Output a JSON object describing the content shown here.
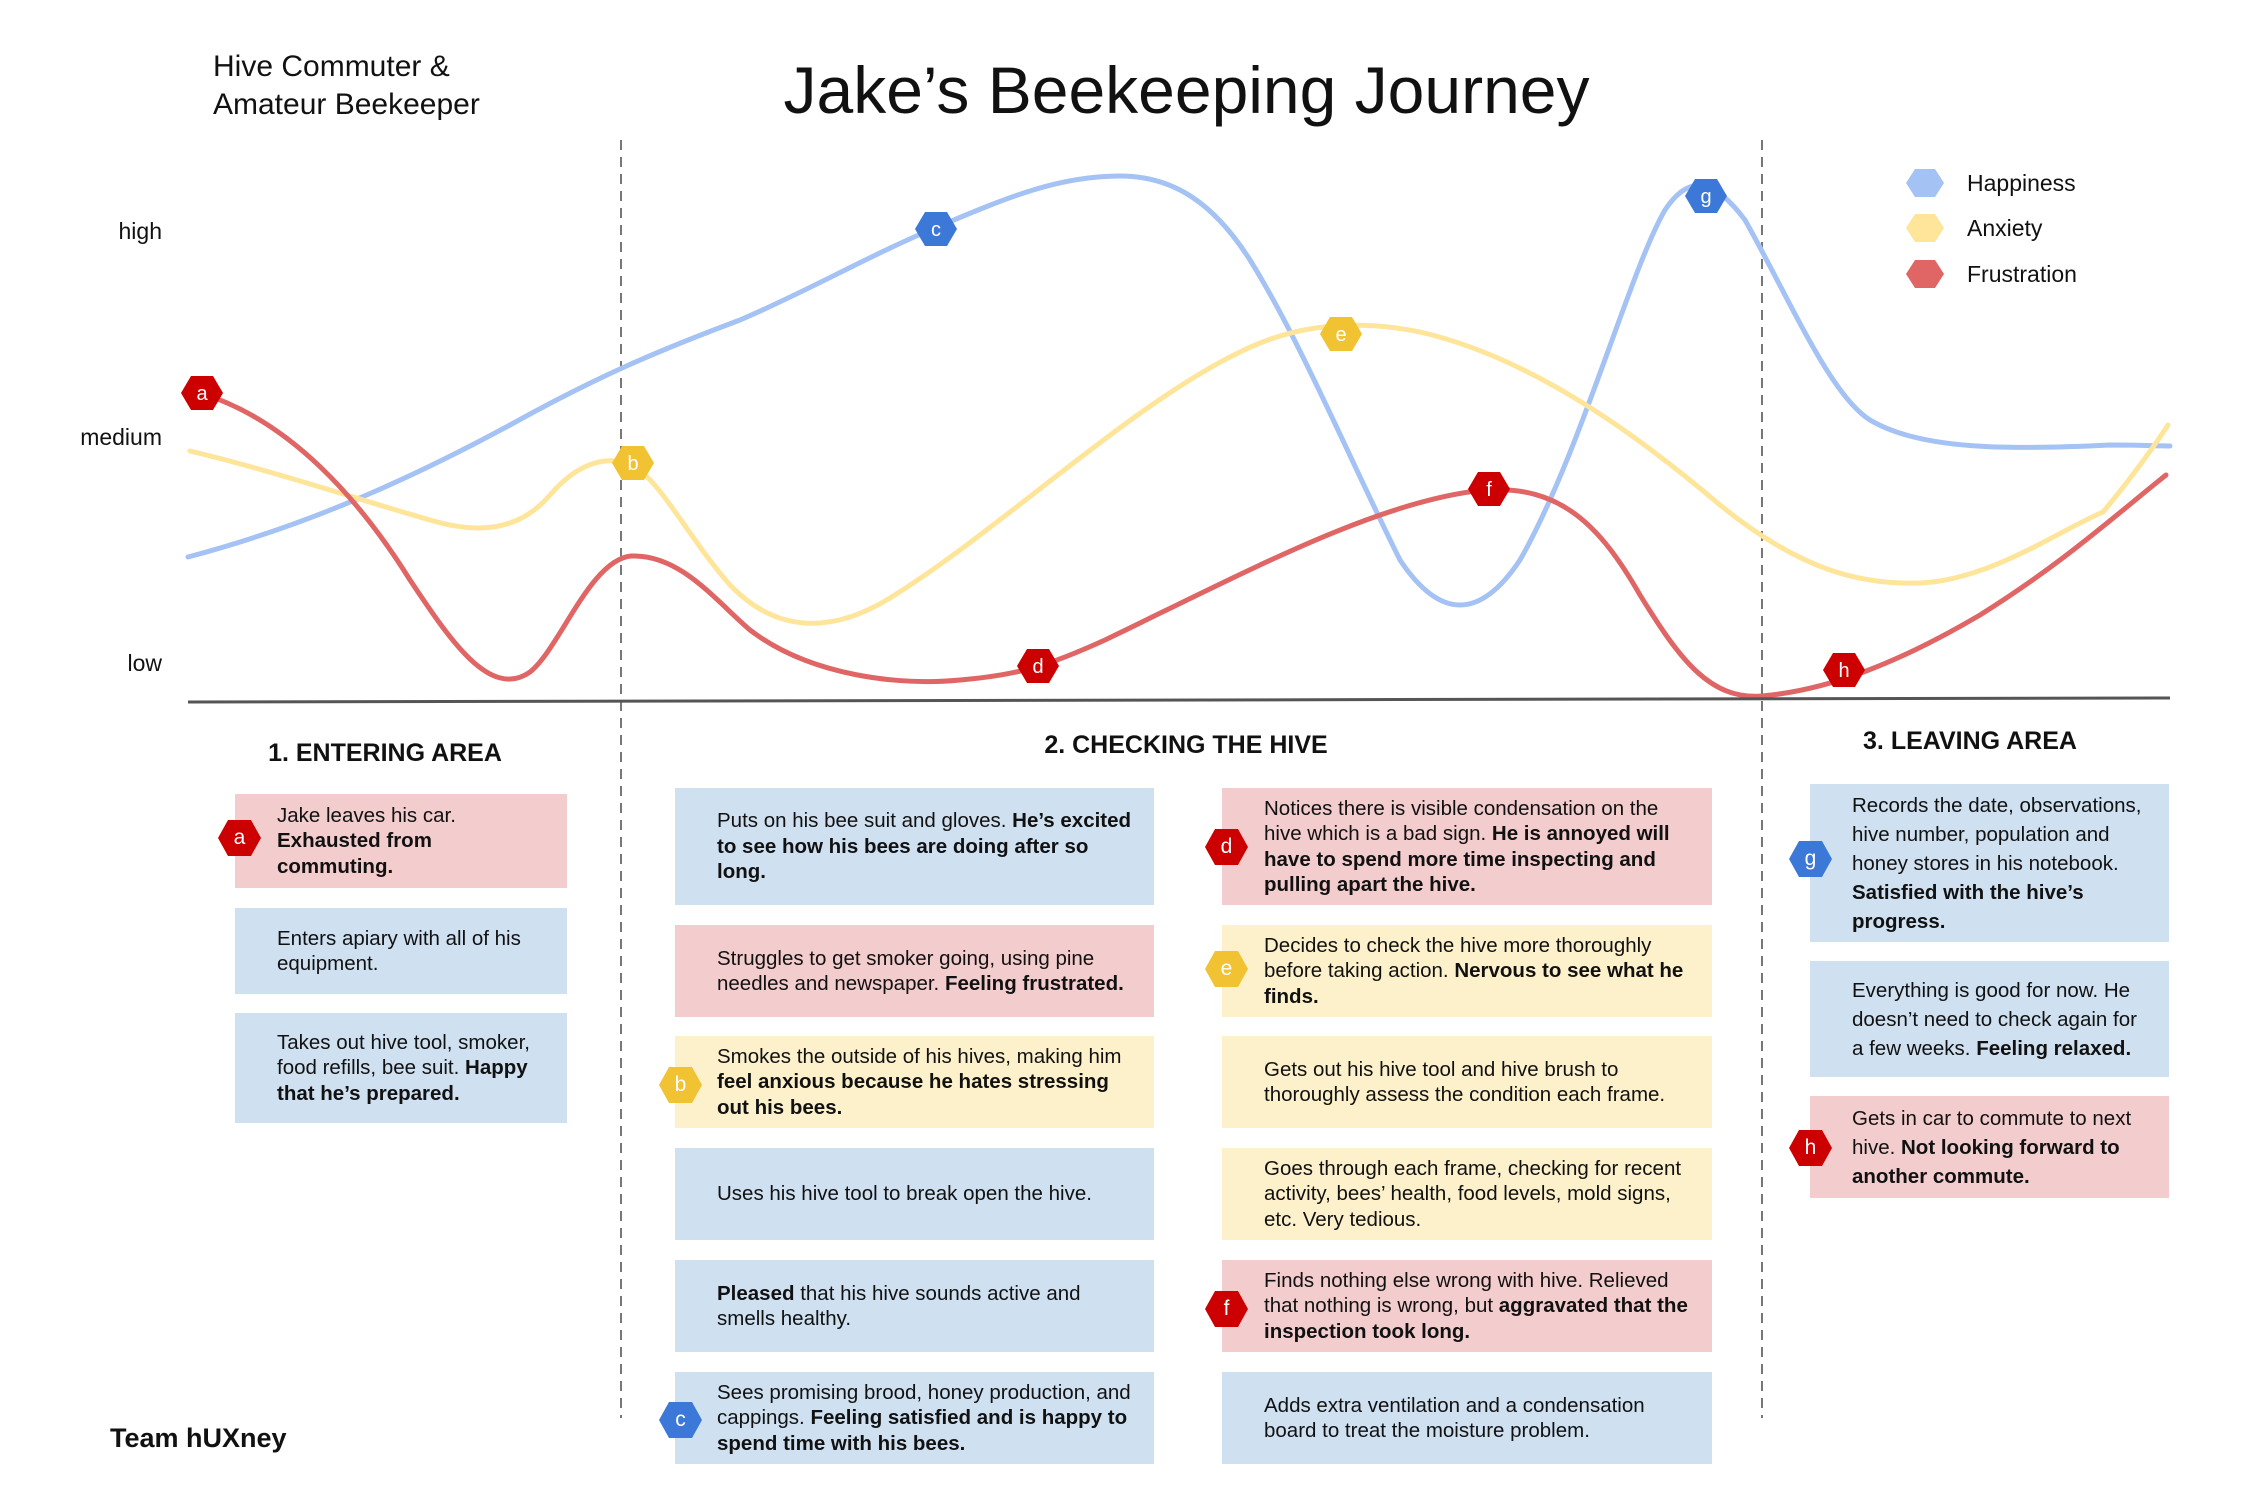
{
  "title": "Jake’s Beekeeping Journey",
  "persona": {
    "line1": "Hive Commuter &",
    "line2": "Amateur Beekeeper"
  },
  "y_axis": {
    "high": "high",
    "medium": "medium",
    "low": "low"
  },
  "legend": [
    {
      "label": "Happiness",
      "color": "#a4c2f4"
    },
    {
      "label": "Anxiety",
      "color": "#ffe599"
    },
    {
      "label": "Frustration",
      "color": "#e06666"
    }
  ],
  "series_colors": {
    "happiness": "#a4c2f4",
    "anxiety": "#ffe599",
    "frustration": "#e06666"
  },
  "markers": [
    {
      "letter": "a",
      "color": "#cc0000"
    },
    {
      "letter": "b",
      "color": "#f1c232"
    },
    {
      "letter": "c",
      "color": "#3c78d8"
    },
    {
      "letter": "d",
      "color": "#cc0000"
    },
    {
      "letter": "e",
      "color": "#f1c232"
    },
    {
      "letter": "f",
      "color": "#cc0000"
    },
    {
      "letter": "g",
      "color": "#3c78d8"
    },
    {
      "letter": "h",
      "color": "#cc0000"
    }
  ],
  "sections": [
    {
      "title": "1. ENTERING AREA",
      "cards": [
        {
          "badge": "a",
          "text": "Jake leaves his car. ",
          "bold": "Exhausted from commuting.",
          "after": ""
        },
        {
          "badge": "",
          "text": "Enters apiary with all of his equipment.",
          "bold": "",
          "after": ""
        },
        {
          "badge": "",
          "text": "Takes out hive tool, smoker, food refills, bee suit. ",
          "bold": "Happy that he’s prepared.",
          "after": ""
        }
      ]
    },
    {
      "title": "2. CHECKING THE HIVE",
      "cards_left": [
        {
          "badge": "",
          "text": "Puts on his bee suit and gloves. ",
          "bold": "He’s excited to see how his bees are doing after so long.",
          "after": ""
        },
        {
          "badge": "",
          "text": "Struggles to get smoker going, using pine needles and newspaper. ",
          "bold": "Feeling frustrated.",
          "after": ""
        },
        {
          "badge": "b",
          "text": "Smokes the outside of his hives, making him ",
          "bold": "feel anxious because he hates stressing out his bees.",
          "after": ""
        },
        {
          "badge": "",
          "text": "Uses his hive tool to break open the hive.",
          "bold": "",
          "after": ""
        },
        {
          "badge": "",
          "text": "",
          "bold": "Pleased",
          "after": " that his hive sounds active and smells healthy."
        },
        {
          "badge": "c",
          "text": "Sees promising brood, honey production, and cappings. ",
          "bold": "Feeling satisfied and is happy to spend time with his bees.",
          "after": ""
        }
      ],
      "cards_right": [
        {
          "badge": "d",
          "text": "Notices there is visible condensation on the hive which is a bad sign. ",
          "bold": "He is annoyed will have to spend more time inspecting and pulling apart the hive.",
          "after": ""
        },
        {
          "badge": "e",
          "text": "Decides to check the hive more thoroughly before taking action. ",
          "bold": "Nervous to see what he finds.",
          "after": ""
        },
        {
          "badge": "",
          "text": "Gets out his hive tool and hive brush to thoroughly assess the condition each frame.",
          "bold": "",
          "after": ""
        },
        {
          "badge": "",
          "text": "Goes through each frame, checking for recent activity, bees’ health, food levels, mold signs, etc. Very tedious.",
          "bold": "",
          "after": ""
        },
        {
          "badge": "f",
          "text": "Finds nothing else wrong with hive. Relieved that nothing is wrong, but ",
          "bold": "aggravated that the inspection took long.",
          "after": ""
        },
        {
          "badge": "",
          "text": "Adds extra ventilation and a condensation board to treat the moisture problem.",
          "bold": "",
          "after": ""
        }
      ]
    },
    {
      "title": "3. LEAVING AREA",
      "cards": [
        {
          "badge": "g",
          "text": "Records the date, observations, hive number, population and honey stores in his notebook. ",
          "bold": "Satisfied with the hive’s progress.",
          "after": ""
        },
        {
          "badge": "",
          "text": "Everything is good for now. He doesn’t need to check again for a few weeks. ",
          "bold": "Feeling relaxed.",
          "after": ""
        },
        {
          "badge": "h",
          "text": "Gets in car to commute to next hive. ",
          "bold": "Not looking forward to another commute.",
          "after": ""
        }
      ]
    }
  ],
  "footer": "Team hUXney"
}
